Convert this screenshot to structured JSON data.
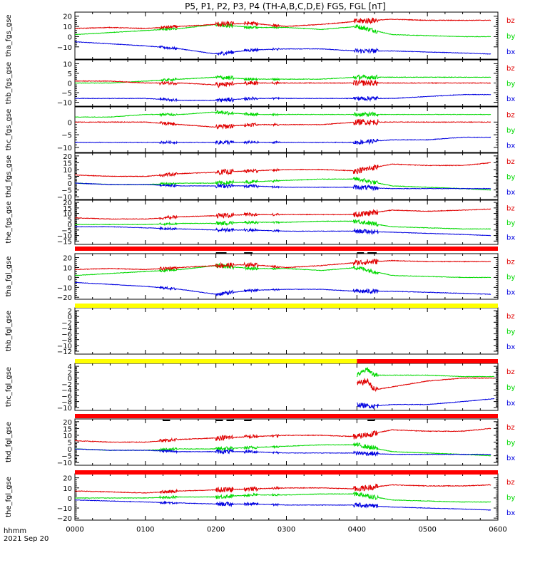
{
  "title": "P5, P1, P2, P3, P4 (TH-A,B,C,D,E) FGS, FGL [nT]",
  "time_axis": {
    "label_line1": "hhmm",
    "label_line2": "2021 Sep 20",
    "ticks": [
      "0000",
      "0100",
      "0200",
      "0300",
      "0400",
      "0500",
      "0600"
    ],
    "range_hours": [
      0,
      6
    ]
  },
  "colors": {
    "bz": "#e00000",
    "by": "#00d800",
    "bx": "#0000e0",
    "bar_red": "#ff0000",
    "bar_yellow": "#ffff00",
    "bar_black": "#000000"
  },
  "chart_data": [
    {
      "type": "line",
      "ylabel": "tha_fgs_gse",
      "ylim": [
        -22,
        24
      ],
      "yticks": [
        20,
        10,
        0,
        -10
      ],
      "legend": [
        "bz",
        "by",
        "bx"
      ],
      "series": [
        {
          "name": "bz",
          "x": [
            0,
            0.5,
            1,
            1.5,
            2,
            2.5,
            3,
            3.5,
            4,
            4.5,
            5,
            5.5,
            5.9
          ],
          "y": [
            8,
            9,
            8,
            10,
            12,
            13,
            10,
            12,
            15,
            17,
            16,
            16,
            16
          ]
        },
        {
          "name": "by",
          "x": [
            0,
            0.5,
            1,
            1.5,
            2,
            2.5,
            3,
            3.5,
            4,
            4.5,
            5,
            5.5,
            5.9
          ],
          "y": [
            2,
            4,
            6,
            8,
            12,
            9,
            9,
            7,
            10,
            2,
            1,
            0,
            0
          ]
        },
        {
          "name": "bx",
          "x": [
            0,
            0.5,
            1,
            1.5,
            2,
            2.5,
            3,
            3.5,
            4,
            4.5,
            5,
            5.5,
            5.9
          ],
          "y": [
            -5,
            -7,
            -9,
            -12,
            -17,
            -13,
            -12,
            -12,
            -14,
            -14,
            -15,
            -16,
            -17
          ]
        }
      ]
    },
    {
      "type": "line",
      "ylabel": "thb_fgs_gse",
      "ylim": [
        -12,
        12
      ],
      "yticks": [
        10,
        5,
        0,
        -5,
        -10
      ],
      "legend": [
        "bz",
        "by",
        "bx"
      ],
      "series": [
        {
          "name": "bz",
          "x": [
            0,
            0.5,
            1,
            1.5,
            2,
            2.5,
            3,
            3.5,
            4,
            4.5,
            5,
            5.5,
            5.9
          ],
          "y": [
            1,
            1,
            0,
            0,
            -1,
            0,
            0,
            0,
            0,
            0,
            0,
            0,
            0
          ]
        },
        {
          "name": "by",
          "x": [
            0,
            0.5,
            1,
            1.5,
            2,
            2.5,
            3,
            3.5,
            4,
            4.5,
            5,
            5.5,
            5.9
          ],
          "y": [
            0,
            0,
            1,
            2,
            3,
            2,
            2,
            2,
            3,
            3,
            3,
            3,
            3
          ]
        },
        {
          "name": "bx",
          "x": [
            0,
            0.5,
            1,
            1.5,
            2,
            2.5,
            3,
            3.5,
            4,
            4.5,
            5,
            5.5,
            5.9
          ],
          "y": [
            -8,
            -8,
            -8,
            -9,
            -9,
            -8,
            -8,
            -8,
            -8,
            -8,
            -7,
            -6,
            -6
          ]
        }
      ]
    },
    {
      "type": "line",
      "ylabel": "thc_fgs_gse",
      "ylim": [
        -12,
        6
      ],
      "yticks": [
        0,
        -5,
        -10
      ],
      "legend": [
        "bz",
        "by",
        "bx"
      ],
      "series": [
        {
          "name": "bz",
          "x": [
            0,
            0.5,
            1,
            1.5,
            2,
            2.5,
            3,
            3.5,
            4,
            4.5,
            5,
            5.5,
            5.9
          ],
          "y": [
            0,
            0,
            0,
            -1,
            -2,
            -1,
            -1,
            -1,
            0,
            0,
            0,
            0,
            0
          ]
        },
        {
          "name": "by",
          "x": [
            0,
            0.5,
            1,
            1.5,
            2,
            2.5,
            3,
            3.5,
            4,
            4.5,
            5,
            5.5,
            5.9
          ],
          "y": [
            2,
            2,
            3,
            3,
            4,
            3,
            3,
            3,
            3,
            3,
            3,
            3,
            3
          ]
        },
        {
          "name": "bx",
          "x": [
            0,
            0.5,
            1,
            1.5,
            2,
            2.5,
            3,
            3.5,
            4,
            4.5,
            5,
            5.5,
            5.9
          ],
          "y": [
            -8,
            -8,
            -8,
            -8,
            -8,
            -8,
            -8,
            -8,
            -8,
            -7,
            -7,
            -6,
            -6
          ]
        }
      ]
    },
    {
      "type": "line",
      "ylabel": "thd_fgs_gse",
      "ylim": [
        -12,
        22
      ],
      "yticks": [
        20,
        15,
        10,
        5,
        0,
        -5,
        -10
      ],
      "legend": [
        "bz",
        "by",
        "bx"
      ],
      "series": [
        {
          "name": "bz",
          "x": [
            0,
            0.5,
            1,
            1.5,
            2,
            2.5,
            3,
            3.5,
            4,
            4.5,
            5,
            5.5,
            5.9
          ],
          "y": [
            6,
            5,
            5,
            7,
            8,
            9,
            10,
            10,
            9,
            14,
            13,
            13,
            15
          ]
        },
        {
          "name": "by",
          "x": [
            0,
            0.5,
            1,
            1.5,
            2,
            2.5,
            3,
            3.5,
            4,
            4.5,
            5,
            5.5,
            5.9
          ],
          "y": [
            0,
            -1,
            -1,
            0,
            0,
            1,
            2,
            3,
            3,
            -2,
            -3,
            -4,
            -5
          ]
        },
        {
          "name": "bx",
          "x": [
            0,
            0.5,
            1,
            1.5,
            2,
            2.5,
            3,
            3.5,
            4,
            4.5,
            5,
            5.5,
            5.9
          ],
          "y": [
            0,
            -1,
            -1,
            -2,
            -2,
            -2,
            -3,
            -3,
            -3,
            -4,
            -4,
            -4,
            -4
          ]
        }
      ]
    },
    {
      "type": "line",
      "ylabel": "the_fgs_gse",
      "ylim": [
        -18,
        22
      ],
      "yticks": [
        20,
        15,
        10,
        5,
        0,
        -5,
        -10,
        -15
      ],
      "legend": [
        "bz",
        "by",
        "bx"
      ],
      "series": [
        {
          "name": "bz",
          "x": [
            0,
            0.5,
            1,
            1.5,
            2,
            2.5,
            3,
            3.5,
            4,
            4.5,
            5,
            5.5,
            5.9
          ],
          "y": [
            6,
            5,
            5,
            7,
            8,
            9,
            9,
            9,
            9,
            13,
            12,
            13,
            14
          ]
        },
        {
          "name": "by",
          "x": [
            0,
            0.5,
            1,
            1.5,
            2,
            2.5,
            3,
            3.5,
            4,
            4.5,
            5,
            5.5,
            5.9
          ],
          "y": [
            0,
            0,
            0,
            1,
            1,
            2,
            2,
            3,
            3,
            -2,
            -3,
            -4,
            -4
          ]
        },
        {
          "name": "bx",
          "x": [
            0,
            0.5,
            1,
            1.5,
            2,
            2.5,
            3,
            3.5,
            4,
            4.5,
            5,
            5.5,
            5.9
          ],
          "y": [
            -2,
            -2,
            -3,
            -4,
            -5,
            -5,
            -6,
            -6,
            -6,
            -7,
            -8,
            -9,
            -10
          ]
        }
      ]
    },
    {
      "type": "line",
      "ylabel": "tha_fgl_gse",
      "ylim": [
        -22,
        24
      ],
      "yticks": [
        20,
        10,
        0,
        -10,
        -20
      ],
      "legend": [
        "bz",
        "by",
        "bx"
      ],
      "series": [
        {
          "name": "bz",
          "x": [
            0,
            0.5,
            1,
            1.5,
            2,
            2.5,
            3,
            3.5,
            4,
            4.5,
            5,
            5.5,
            5.9
          ],
          "y": [
            8,
            9,
            8,
            10,
            12,
            13,
            10,
            12,
            15,
            17,
            16,
            16,
            16
          ]
        },
        {
          "name": "by",
          "x": [
            0,
            0.5,
            1,
            1.5,
            2,
            2.5,
            3,
            3.5,
            4,
            4.5,
            5,
            5.5,
            5.9
          ],
          "y": [
            2,
            4,
            6,
            8,
            12,
            9,
            9,
            7,
            10,
            2,
            1,
            0,
            0
          ]
        },
        {
          "name": "bx",
          "x": [
            0,
            0.5,
            1,
            1.5,
            2,
            2.5,
            3,
            3.5,
            4,
            4.5,
            5,
            5.5,
            5.9
          ],
          "y": [
            -5,
            -7,
            -9,
            -12,
            -17,
            -13,
            -12,
            -12,
            -14,
            -14,
            -15,
            -16,
            -17
          ]
        }
      ]
    },
    {
      "type": "line",
      "ylabel": "thb_fgl_gse",
      "ylim": [
        -13,
        3
      ],
      "yticks": [
        2,
        0,
        -2,
        -4,
        -6,
        -8,
        -10,
        -12
      ],
      "legend": [
        "bz",
        "by",
        "bx"
      ],
      "series": []
    },
    {
      "type": "line",
      "ylabel": "thc_fgl_gse",
      "ylim": [
        -11,
        5
      ],
      "yticks": [
        4,
        2,
        0,
        -2,
        -4,
        -6,
        -8,
        -10
      ],
      "legend": [
        "bz",
        "by",
        "bx"
      ],
      "series": [
        {
          "name": "bz",
          "x": [
            4.0,
            4.15,
            4.25,
            4.5,
            5.0,
            5.5,
            5.95
          ],
          "y": [
            -2,
            -1,
            -4,
            -3,
            -1,
            0,
            0
          ]
        },
        {
          "name": "by",
          "x": [
            4.0,
            4.15,
            4.25,
            4.5,
            5.0,
            5.5,
            5.95
          ],
          "y": [
            1,
            3,
            1,
            1,
            1,
            0.5,
            0.5
          ]
        },
        {
          "name": "bx",
          "x": [
            4.0,
            4.15,
            4.25,
            4.5,
            5.0,
            5.5,
            5.95
          ],
          "y": [
            -9,
            -9.5,
            -9.5,
            -9,
            -9,
            -8,
            -7
          ]
        }
      ]
    },
    {
      "type": "line",
      "ylabel": "thd_fgl_gse",
      "ylim": [
        -12,
        22
      ],
      "yticks": [
        20,
        15,
        10,
        5,
        0,
        -5,
        -10
      ],
      "legend": [
        "bz",
        "by",
        "bx"
      ],
      "series": [
        {
          "name": "bz",
          "x": [
            0,
            0.5,
            1,
            1.5,
            2,
            2.5,
            3,
            3.5,
            4,
            4.5,
            5,
            5.5,
            5.9
          ],
          "y": [
            6,
            5,
            5,
            7,
            8,
            9,
            10,
            10,
            9,
            14,
            13,
            13,
            15
          ]
        },
        {
          "name": "by",
          "x": [
            0,
            0.5,
            1,
            1.5,
            2,
            2.5,
            3,
            3.5,
            4,
            4.5,
            5,
            5.5,
            5.9
          ],
          "y": [
            0,
            -1,
            -1,
            0,
            0,
            1,
            2,
            3,
            3,
            -2,
            -3,
            -4,
            -5
          ]
        },
        {
          "name": "bx",
          "x": [
            0,
            0.5,
            1,
            1.5,
            2,
            2.5,
            3,
            3.5,
            4,
            4.5,
            5,
            5.5,
            5.9
          ],
          "y": [
            0,
            -1,
            -1,
            -2,
            -2,
            -2,
            -3,
            -3,
            -3,
            -4,
            -4,
            -4,
            -4
          ]
        }
      ]
    },
    {
      "type": "line",
      "ylabel": "the_fgl_gse",
      "ylim": [
        -22,
        24
      ],
      "yticks": [
        20,
        10,
        0,
        -10,
        -20
      ],
      "legend": [
        "bz",
        "by",
        "bx"
      ],
      "series": [
        {
          "name": "bz",
          "x": [
            0,
            0.5,
            1,
            1.5,
            2,
            2.5,
            3,
            3.5,
            4,
            4.5,
            5,
            5.5,
            5.9
          ],
          "y": [
            7,
            6,
            5,
            7,
            8,
            9,
            10,
            10,
            9,
            13,
            12,
            12,
            13
          ]
        },
        {
          "name": "by",
          "x": [
            0,
            0.5,
            1,
            1.5,
            2,
            2.5,
            3,
            3.5,
            4,
            4.5,
            5,
            5.5,
            5.9
          ],
          "y": [
            0,
            0,
            0,
            1,
            1,
            3,
            3,
            4,
            4,
            -2,
            -3,
            -4,
            -4
          ]
        },
        {
          "name": "bx",
          "x": [
            0,
            0.5,
            1,
            1.5,
            2,
            2.5,
            3,
            3.5,
            4,
            4.5,
            5,
            5.5,
            5.9
          ],
          "y": [
            -2,
            -3,
            -4,
            -5,
            -6,
            -6,
            -7,
            -7,
            -7,
            -9,
            -10,
            -11,
            -12
          ]
        }
      ]
    }
  ],
  "mode_bars": [
    {
      "after_panel": 4,
      "segments": [
        {
          "x": [
            0,
            6
          ],
          "color": "bar_red"
        }
      ],
      "marks": [
        [
          2.0,
          2.15
        ],
        [
          2.4,
          2.52
        ],
        [
          4.0,
          4.1
        ],
        [
          4.15,
          4.28
        ]
      ]
    },
    {
      "after_panel": 5,
      "segments": [
        {
          "x": [
            0,
            6
          ],
          "color": "bar_yellow"
        }
      ],
      "marks": []
    },
    {
      "after_panel": 6,
      "segments": [
        {
          "x": [
            0,
            4.0
          ],
          "color": "bar_yellow"
        },
        {
          "x": [
            4.0,
            6
          ],
          "color": "bar_red"
        }
      ],
      "marks": []
    },
    {
      "after_panel": 7,
      "segments": [
        {
          "x": [
            0,
            6
          ],
          "color": "bar_red"
        }
      ],
      "marks": [
        [
          1.25,
          1.35
        ],
        [
          2.0,
          2.1
        ],
        [
          2.15,
          2.25
        ],
        [
          2.4,
          2.5
        ],
        [
          4.15,
          4.25
        ]
      ]
    },
    {
      "after_panel": 8,
      "segments": [
        {
          "x": [
            0,
            6
          ],
          "color": "bar_red"
        }
      ],
      "marks": []
    }
  ]
}
